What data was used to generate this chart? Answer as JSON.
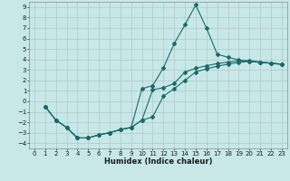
{
  "xlabel": "Humidex (Indice chaleur)",
  "bg_color": "#c8e8e8",
  "grid_color": "#b0c8c8",
  "line_color": "#1a6b6b",
  "xlim": [
    -0.5,
    23.5
  ],
  "ylim": [
    -4.5,
    9.5
  ],
  "xticks": [
    0,
    1,
    2,
    3,
    4,
    5,
    6,
    7,
    8,
    9,
    10,
    11,
    12,
    13,
    14,
    15,
    16,
    17,
    18,
    19,
    20,
    21,
    22,
    23
  ],
  "yticks": [
    -4,
    -3,
    -2,
    -1,
    0,
    1,
    2,
    3,
    4,
    5,
    6,
    7,
    8,
    9
  ],
  "curve1_x": [
    1,
    2,
    3,
    4,
    5,
    6,
    7,
    8,
    9,
    10,
    11,
    12,
    13,
    14,
    15,
    16,
    17,
    18,
    19,
    20,
    21,
    22,
    23
  ],
  "curve1_y": [
    -0.5,
    -1.8,
    -2.5,
    -3.5,
    -3.5,
    -3.2,
    -3.0,
    -2.7,
    -2.5,
    1.2,
    1.5,
    3.2,
    5.5,
    7.3,
    9.2,
    7.0,
    4.5,
    4.2,
    3.95,
    3.8,
    3.75,
    3.65,
    3.55
  ],
  "curve2_x": [
    1,
    2,
    3,
    4,
    5,
    6,
    7,
    8,
    9,
    10,
    11,
    12,
    13,
    14,
    15,
    16,
    17,
    18,
    19,
    20,
    21,
    22,
    23
  ],
  "curve2_y": [
    -0.5,
    -1.8,
    -2.5,
    -3.5,
    -3.5,
    -3.2,
    -3.0,
    -2.7,
    -2.5,
    -1.8,
    1.1,
    1.3,
    1.7,
    2.8,
    3.15,
    3.4,
    3.6,
    3.75,
    3.85,
    3.9,
    3.75,
    3.65,
    3.55
  ],
  "curve3_x": [
    1,
    2,
    3,
    4,
    5,
    6,
    7,
    8,
    9,
    10,
    11,
    12,
    13,
    14,
    15,
    16,
    17,
    18,
    19,
    20,
    21,
    22,
    23
  ],
  "curve3_y": [
    -0.5,
    -1.8,
    -2.5,
    -3.5,
    -3.5,
    -3.2,
    -3.0,
    -2.7,
    -2.5,
    -1.8,
    -1.5,
    0.5,
    1.2,
    2.0,
    2.8,
    3.1,
    3.35,
    3.55,
    3.7,
    3.82,
    3.7,
    3.62,
    3.52
  ],
  "tick_fontsize": 5.0,
  "xlabel_fontsize": 6.0,
  "marker_size": 2.0,
  "line_width": 0.8
}
